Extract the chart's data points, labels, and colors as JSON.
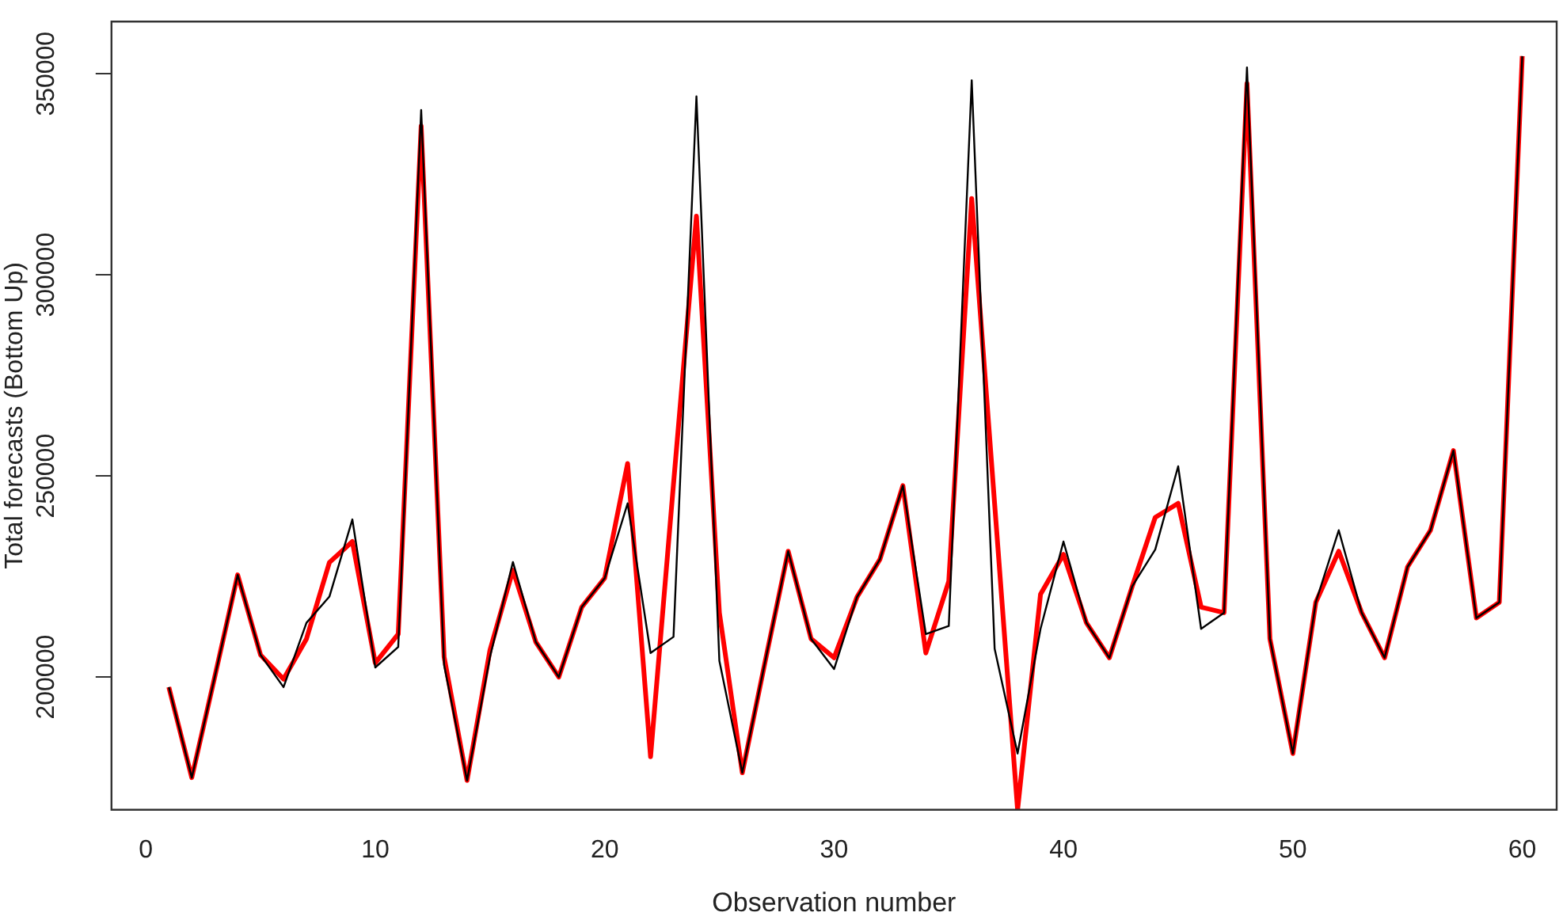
{
  "chart_data": {
    "type": "line",
    "xlabel": "Observation number",
    "ylabel": "Total forecasts (Bottom Up)",
    "x": [
      1,
      2,
      3,
      4,
      5,
      6,
      7,
      8,
      9,
      10,
      11,
      12,
      13,
      14,
      15,
      16,
      17,
      18,
      19,
      20,
      21,
      22,
      23,
      24,
      25,
      26,
      27,
      28,
      29,
      30,
      31,
      32,
      33,
      34,
      35,
      36,
      37,
      38,
      39,
      40,
      41,
      42,
      43,
      44,
      45,
      46,
      47,
      48,
      49,
      50,
      51,
      52,
      53,
      54,
      55,
      56,
      57,
      58,
      59,
      60
    ],
    "series": [
      {
        "color": "#000000",
        "values": [
          197500,
          175000,
          200000,
          225400,
          205500,
          197500,
          213500,
          220000,
          239200,
          202400,
          207500,
          341000,
          203000,
          174300,
          205000,
          228600,
          208700,
          200000,
          217400,
          224600,
          243200,
          206000,
          210000,
          344400,
          204000,
          176200,
          204000,
          231300,
          209500,
          202000,
          219900,
          229300,
          247600,
          210700,
          212700,
          348400,
          207000,
          181000,
          212000,
          233700,
          213500,
          204800,
          222600,
          231700,
          252400,
          212000,
          216000,
          351600,
          209500,
          181000,
          218600,
          236500,
          216000,
          204800,
          227400,
          236500,
          256300,
          214700,
          218600,
          354400
        ]
      },
      {
        "color": "#ff0000",
        "values": [
          197500,
          175000,
          200000,
          225400,
          205500,
          199500,
          209500,
          228500,
          233700,
          203500,
          210700,
          337000,
          205000,
          174300,
          206700,
          226600,
          208700,
          200000,
          217400,
          224600,
          253100,
          180200,
          248000,
          314600,
          216000,
          176200,
          204000,
          231300,
          209500,
          204800,
          219900,
          229300,
          247600,
          206000,
          223800,
          319000,
          243000,
          167000,
          220600,
          230500,
          213500,
          204800,
          222600,
          239700,
          243200,
          217400,
          216000,
          347600,
          209500,
          181000,
          218600,
          231300,
          216000,
          204800,
          227400,
          236500,
          256300,
          214700,
          218600,
          354400
        ]
      }
    ],
    "xlim": [
      -1.5,
      61.5
    ],
    "xticks": [
      0,
      10,
      20,
      30,
      40,
      50,
      60
    ],
    "ylim": [
      167000,
      363000
    ],
    "yticks": [
      200000,
      250000,
      300000,
      350000
    ],
    "grid": false,
    "legend": false,
    "marker": "none",
    "line_style": "solid"
  }
}
